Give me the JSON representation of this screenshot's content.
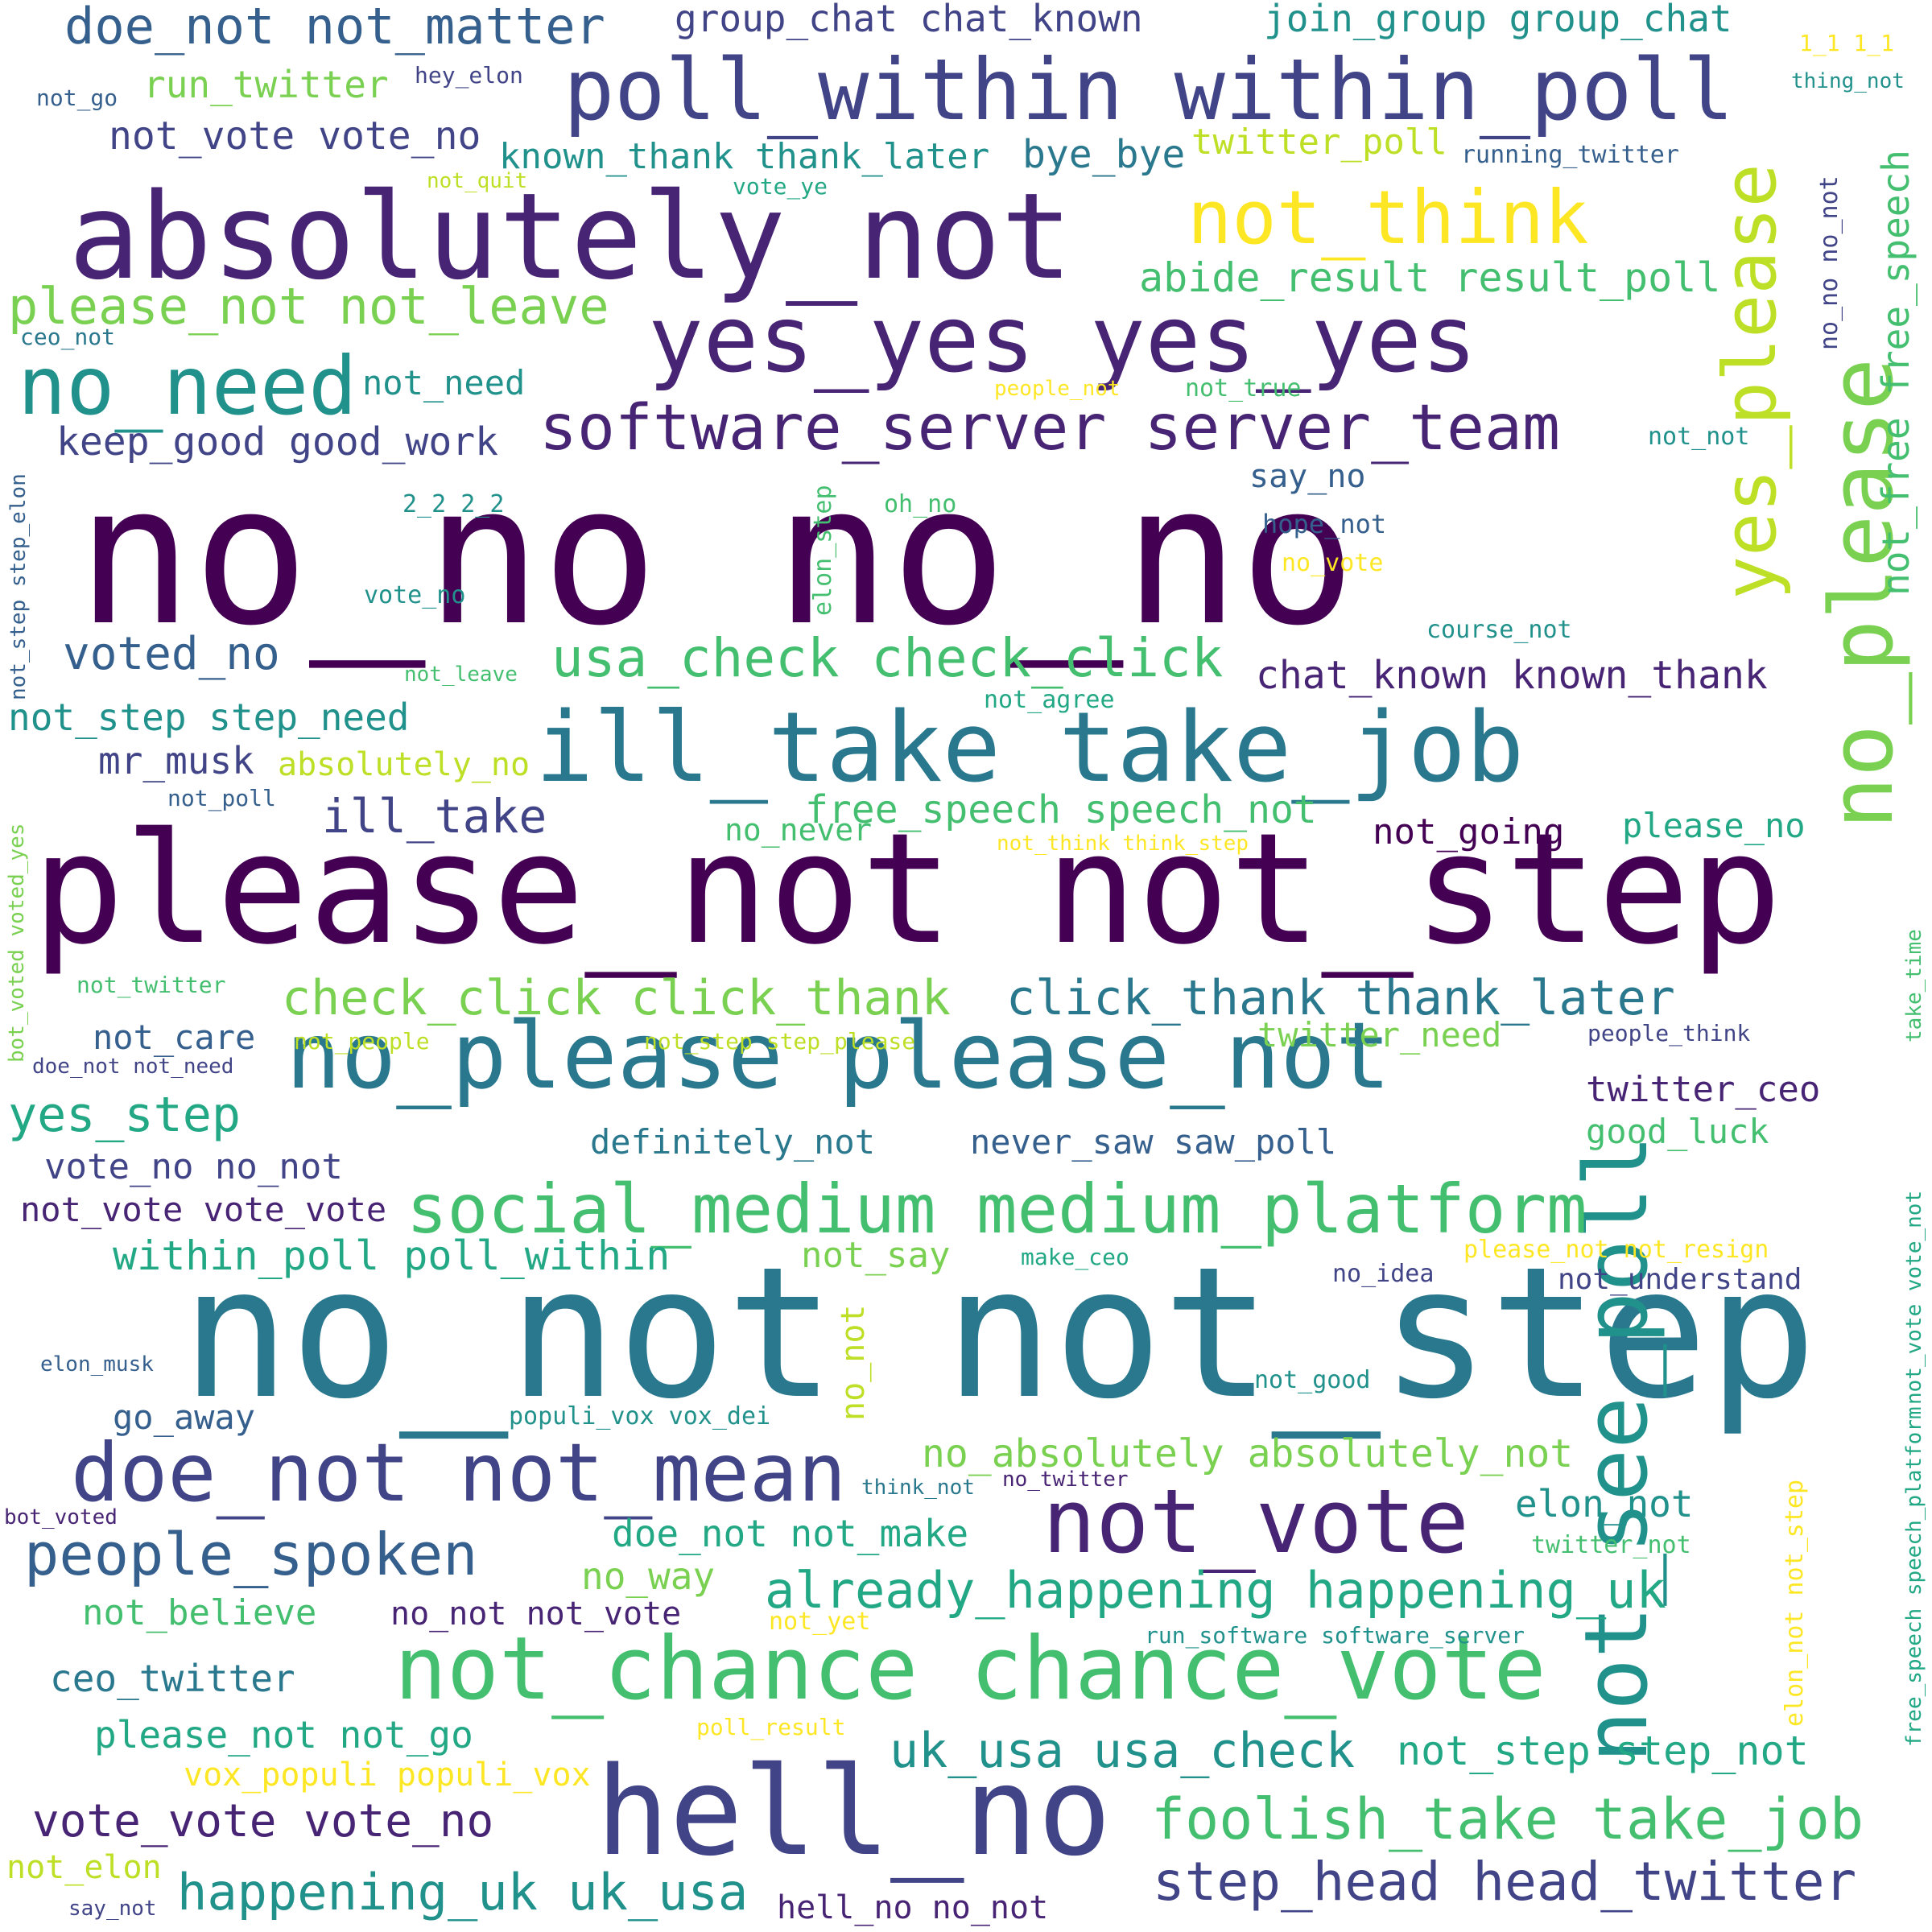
{
  "wordcloud": {
    "palette": {
      "d1": "#440154",
      "d2": "#482475",
      "d3": "#414487",
      "d4": "#355f8d",
      "d5": "#2a788e",
      "d6": "#21918c",
      "d7": "#22a884",
      "d8": "#44bf70",
      "d9": "#7ad151",
      "d10": "#bddf26",
      "d11": "#fde725"
    },
    "background": "#ffffff",
    "words": [
      "no_no no_no",
      "please_not not_step",
      "no_not not_step",
      "absolutely_not",
      "hell_no",
      "ill_take take_job",
      "no_please please_not",
      "yes_yes yes_yes",
      "poll_within within_poll",
      "not_chance chance_vote",
      "not_see_poll",
      "no_please",
      "yes_please",
      "social_medium medium_platform",
      "not_vote",
      "doe_not not_mean",
      "no_need",
      "not_think",
      "software_server server_team",
      "foolish_take take_job",
      "doe_not not_matter",
      "usa_check check_click",
      "check_click click_thank",
      "click_thank thank_later",
      "people_spoken",
      "already_happening happening_uk",
      "happening_uk uk_usa",
      "step_head head_twitter",
      "please_not not_leave",
      "uk_usa usa_check",
      "vote_vote vote_no",
      "not_step step_not",
      "voted_no",
      "ill_take",
      "yes_step",
      "abide_result result_poll",
      "group_chat chat_known",
      "join_group group_chat",
      "known_thank thank_later",
      "chat_known known_thank",
      "not_vote vote_no",
      "keep_good good_work",
      "within_poll poll_within",
      "free_speech speech_not",
      "no_absolutely absolutely_not",
      "not_free free_speech",
      "not_step step_need",
      "mr_musk",
      "run_twitter",
      "bye_bye",
      "twitter_poll",
      "vote_no no_not",
      "not_vote vote_vote",
      "twitter_ceo",
      "doe_not not_make",
      "elon_not",
      "ceo_twitter",
      "please_not not_go",
      "not_believe",
      "definitely_not",
      "never_saw saw_poll",
      "not_care",
      "go_away",
      "not_need",
      "say_no",
      "no_way",
      "not_say",
      "good_luck",
      "please_no",
      "not_going",
      "twitter_need",
      "absolutely_no",
      "vox_populi populi_vox",
      "no_not not_vote",
      "hell_no no_not",
      "no_not",
      "not_elon",
      "no_never",
      "not_understand",
      "no_no no_not",
      "hope_not",
      "no_vote",
      "course_not",
      "not_not",
      "not_true",
      "people_not",
      "oh_no",
      "2_2 2_2",
      "elon_step",
      "vote_no",
      "not_leave",
      "not_agree",
      "not_poll",
      "not_think think_step",
      "not_twitter",
      "not_people",
      "not_step step_please",
      "people_think",
      "doe_not not_need",
      "make_ceo",
      "please_not not_resign",
      "no_idea",
      "elon_musk",
      "not_good",
      "populi_vox vox_dei",
      "think_not",
      "no_twitter",
      "twitter_not",
      "bot_voted",
      "not_yet",
      "run_software software_server",
      "poll_result",
      "not_go",
      "hey_elon",
      "1_1 1_1",
      "thing_not",
      "running_twitter",
      "not_quit",
      "vote_ye",
      "ceo_not",
      "not_step step_elon",
      "bot_voted voted_yes",
      "take_time",
      "not_vote vote_not",
      "free_speech speech_platform",
      "elon_not not_step",
      "say_not"
    ]
  }
}
